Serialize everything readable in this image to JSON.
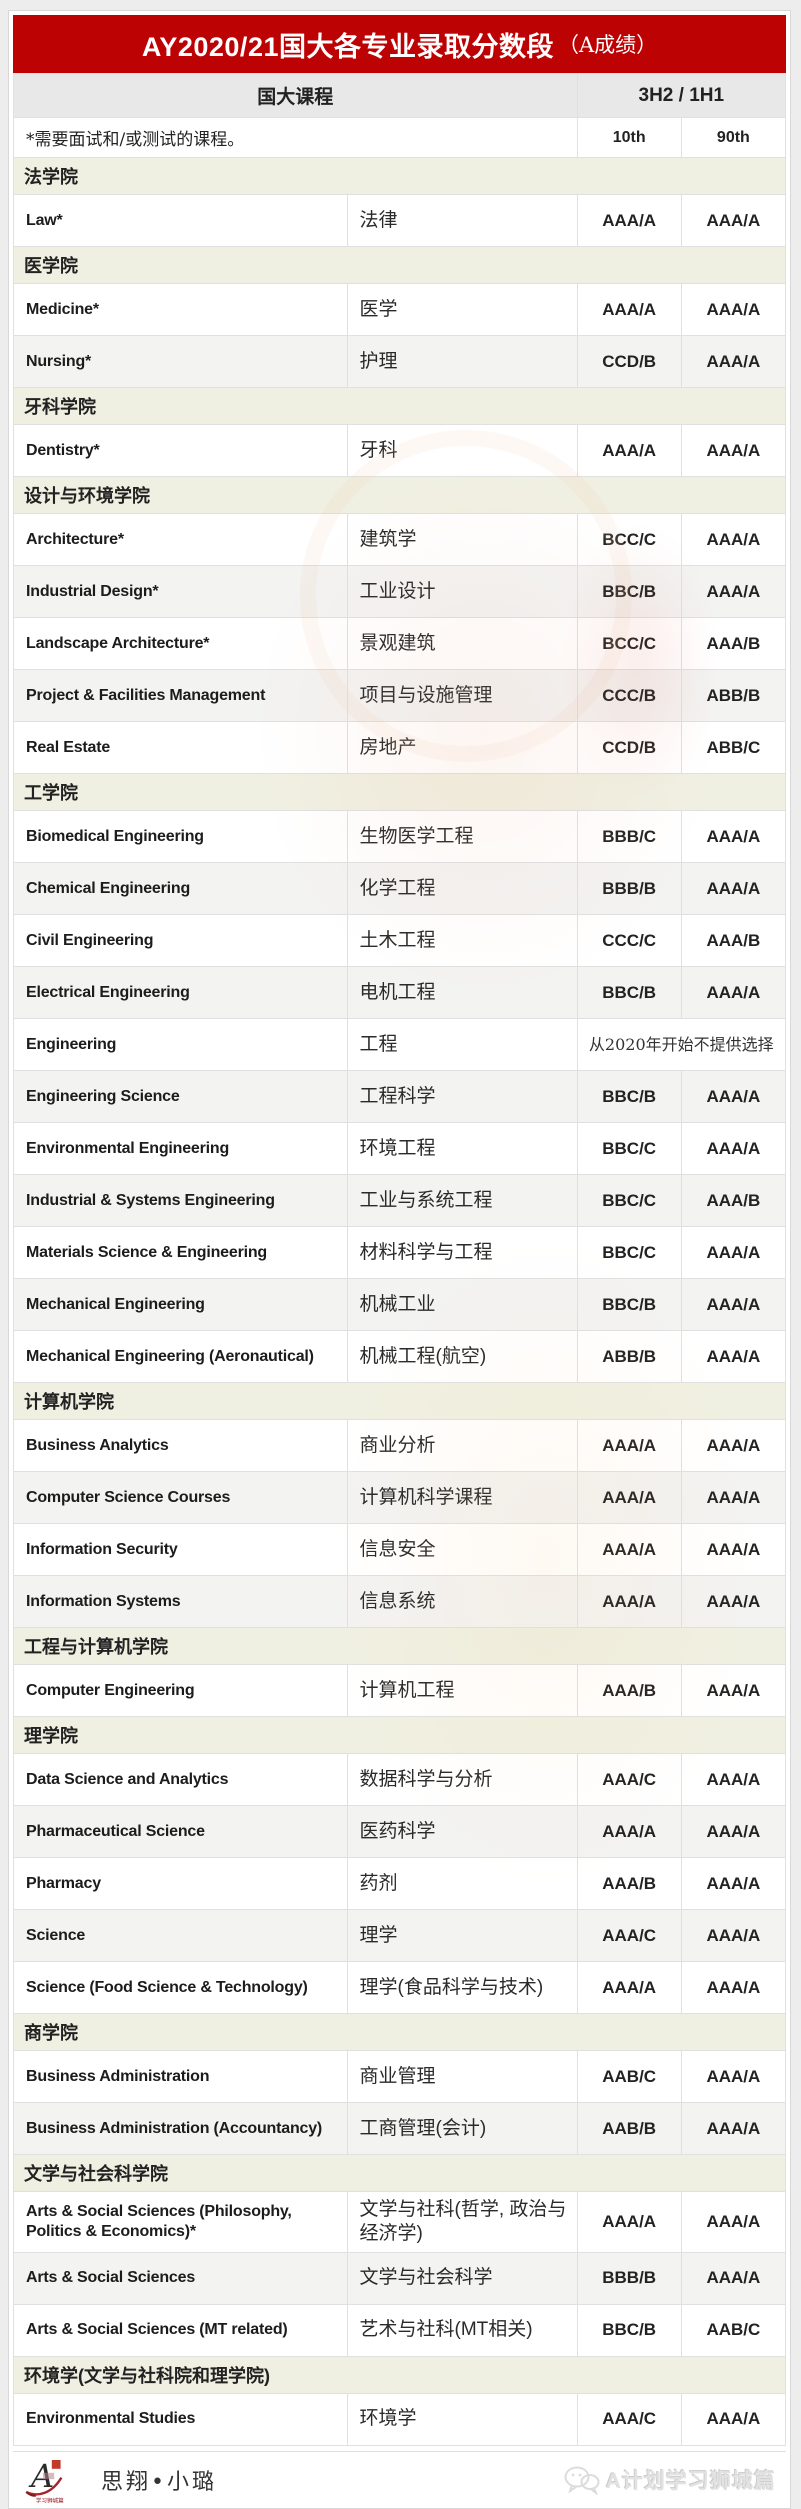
{
  "title": {
    "main": "AY2020/21国大各专业录取分数段",
    "suffix": "（A成绩）"
  },
  "header": {
    "course": "国大课程",
    "grades": "3H2 / 1H1",
    "note": "*需要面试和/或测试的课程。",
    "p10": "10th",
    "p90": "90th"
  },
  "colors": {
    "accent_red": "#bc0203",
    "section_bg": "#f0f0e2"
  },
  "sections": [
    {
      "name": "法学院",
      "rows": [
        {
          "en": "Law*",
          "zh": "法律",
          "p10": "AAA/A",
          "p90": "AAA/A"
        }
      ]
    },
    {
      "name": "医学院",
      "rows": [
        {
          "en": "Medicine*",
          "zh": "医学",
          "p10": "AAA/A",
          "p90": "AAA/A"
        },
        {
          "en": "Nursing*",
          "zh": "护理",
          "p10": "CCD/B",
          "p90": "AAA/A"
        }
      ]
    },
    {
      "name": "牙科学院",
      "rows": [
        {
          "en": "Dentistry*",
          "zh": "牙科",
          "p10": "AAA/A",
          "p90": "AAA/A"
        }
      ]
    },
    {
      "name": "设计与环境学院",
      "rows": [
        {
          "en": "Architecture*",
          "zh": "建筑学",
          "p10": "BCC/C",
          "p90": "AAA/A"
        },
        {
          "en": "Industrial Design*",
          "zh": "工业设计",
          "p10": "BBC/B",
          "p90": "AAA/A"
        },
        {
          "en": "Landscape Architecture*",
          "zh": "景观建筑",
          "p10": "BCC/C",
          "p90": "AAA/B"
        },
        {
          "en": "Project & Facilities Management",
          "zh": "项目与设施管理",
          "p10": "CCC/B",
          "p90": "ABB/B"
        },
        {
          "en": "Real Estate",
          "zh": "房地产",
          "p10": "CCD/B",
          "p90": "ABB/C"
        }
      ]
    },
    {
      "name": "工学院",
      "rows": [
        {
          "en": "Biomedical Engineering",
          "zh": "生物医学工程",
          "p10": "BBB/C",
          "p90": "AAA/A"
        },
        {
          "en": "Chemical Engineering",
          "zh": "化学工程",
          "p10": "BBB/B",
          "p90": "AAA/A"
        },
        {
          "en": "Civil Engineering",
          "zh": "土木工程",
          "p10": "CCC/C",
          "p90": "AAA/B"
        },
        {
          "en": "Electrical Engineering",
          "zh": "电机工程",
          "p10": "BBC/B",
          "p90": "AAA/A"
        },
        {
          "en": "Engineering",
          "zh": "工程",
          "note": "从2020年开始不提供选择"
        },
        {
          "en": "Engineering Science",
          "zh": "工程科学",
          "p10": "BBC/B",
          "p90": "AAA/A"
        },
        {
          "en": "Environmental Engineering",
          "zh": "环境工程",
          "p10": "BBC/C",
          "p90": "AAA/A"
        },
        {
          "en": "Industrial & Systems Engineering",
          "zh": "工业与系统工程",
          "p10": "BBC/C",
          "p90": "AAA/B"
        },
        {
          "en": "Materials Science & Engineering",
          "zh": "材料科学与工程",
          "p10": "BBC/C",
          "p90": "AAA/A"
        },
        {
          "en": "Mechanical Engineering",
          "zh": "机械工业",
          "p10": "BBC/B",
          "p90": "AAA/A"
        },
        {
          "en": "Mechanical Engineering (Aeronautical)",
          "zh": "机械工程(航空)",
          "p10": "ABB/B",
          "p90": "AAA/A"
        }
      ]
    },
    {
      "name": "计算机学院",
      "rows": [
        {
          "en": "Business Analytics",
          "zh": "商业分析",
          "p10": "AAA/A",
          "p90": "AAA/A"
        },
        {
          "en": "Computer Science Courses",
          "zh": "计算机科学课程",
          "p10": "AAA/A",
          "p90": "AAA/A"
        },
        {
          "en": "Information Security",
          "zh": "信息安全",
          "p10": "AAA/A",
          "p90": "AAA/A"
        },
        {
          "en": "Information Systems",
          "zh": "信息系统",
          "p10": "AAA/A",
          "p90": "AAA/A"
        }
      ]
    },
    {
      "name": "工程与计算机学院",
      "rows": [
        {
          "en": "Computer Engineering",
          "zh": "计算机工程",
          "p10": "AAA/B",
          "p90": "AAA/A"
        }
      ]
    },
    {
      "name": "理学院",
      "rows": [
        {
          "en": "Data Science and Analytics",
          "zh": "数据科学与分析",
          "p10": "AAA/C",
          "p90": "AAA/A"
        },
        {
          "en": "Pharmaceutical Science",
          "zh": "医药科学",
          "p10": "AAA/A",
          "p90": "AAA/A"
        },
        {
          "en": "Pharmacy",
          "zh": "药剂",
          "p10": "AAA/B",
          "p90": "AAA/A"
        },
        {
          "en": "Science",
          "zh": "理学",
          "p10": "AAA/C",
          "p90": "AAA/A"
        },
        {
          "en": "Science (Food Science & Technology)",
          "zh": "理学(食品科学与技术)",
          "p10": "AAA/A",
          "p90": "AAA/A"
        }
      ]
    },
    {
      "name": "商学院",
      "rows": [
        {
          "en": "Business Administration",
          "zh": "商业管理",
          "p10": "AAB/C",
          "p90": "AAA/A"
        },
        {
          "en": "Business Administration (Accountancy)",
          "zh": "工商管理(会计)",
          "p10": "AAB/B",
          "p90": "AAA/A"
        }
      ]
    },
    {
      "name": "文学与社会科学院",
      "rows": [
        {
          "en": "Arts & Social Sciences (Philosophy, Politics & Economics)*",
          "zh": "文学与社科(哲学, 政治与经济学)",
          "p10": "AAA/A",
          "p90": "AAA/A"
        },
        {
          "en": "Arts & Social Sciences",
          "zh": "文学与社会科学",
          "p10": "BBB/B",
          "p90": "AAA/A"
        },
        {
          "en": "Arts & Social Sciences (MT related)",
          "zh": "艺术与社科(MT相关)",
          "p10": "BBC/B",
          "p90": "AAB/C"
        }
      ]
    },
    {
      "name": "环境学(文学与社科院和理学院)",
      "rows": [
        {
          "en": "Environmental Studies",
          "zh": "环境学",
          "p10": "AAA/C",
          "p90": "AAA/A"
        }
      ]
    }
  ],
  "footer": {
    "brand": "思翔•小璐",
    "logo_letter": "A",
    "logo_caption": "学习狮城篇",
    "watermark": "A计划学习狮城篇"
  }
}
